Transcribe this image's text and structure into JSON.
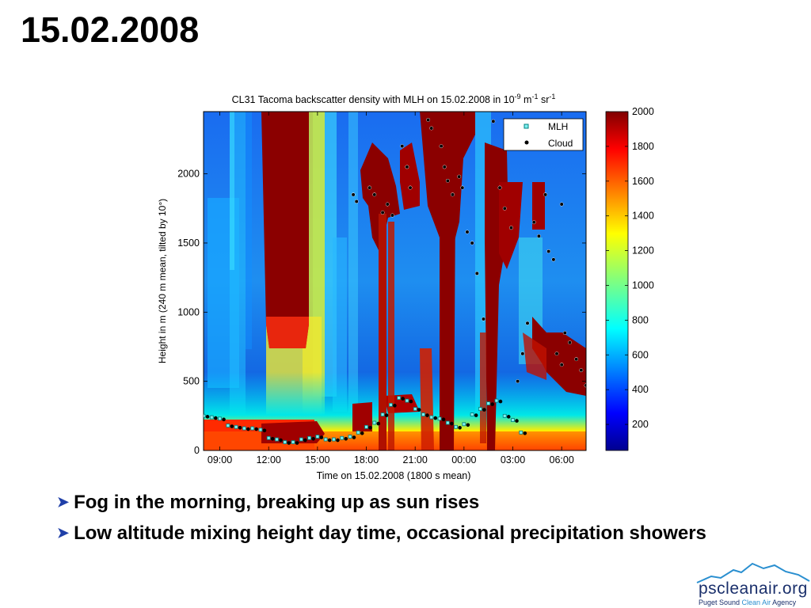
{
  "slide": {
    "title": "15.02.2008",
    "bullets": [
      "Fog in the morning, breaking up as sun rises",
      "Low altitude mixing height day time, occasional precipitation showers"
    ],
    "logo": {
      "name": "pscleanair.org",
      "tagline_part1": "Puget Sound ",
      "tagline_clean": "Clean Air",
      "tagline_part2": " Agency"
    }
  },
  "chart_data": {
    "type": "heatmap",
    "title": "CL31 Tacoma backscatter density with MLH on 15.02.2008 in 10^-9 m^-1 sr^-1",
    "title_parts": {
      "main": "CL31 Tacoma backscatter density with MLH on 15.02.2008 in 10",
      "exp1": "-9",
      "mid": " m",
      "exp2": "-1",
      "mid2": " sr",
      "exp3": "-1"
    },
    "xlabel": "Time on 15.02.2008 (1800 s mean)",
    "ylabel": "Height in m (240 m mean, tilted by 10°)",
    "x_ticks": [
      "09:00",
      "12:00",
      "15:00",
      "18:00",
      "21:00",
      "00:00",
      "03:00",
      "06:00"
    ],
    "x_tick_hours": [
      0,
      3,
      6,
      9,
      12,
      15,
      18,
      21
    ],
    "xlim_hours": [
      -1,
      22.5
    ],
    "y_ticks": [
      0,
      500,
      1000,
      1500,
      2000
    ],
    "ylim": [
      0,
      2450
    ],
    "colorbar": {
      "ticks": [
        200,
        400,
        600,
        800,
        1000,
        1200,
        1400,
        1600,
        1800,
        2000
      ],
      "range": [
        50,
        2000
      ],
      "colormap": "jet"
    },
    "legend": {
      "position": "top-right",
      "entries": [
        {
          "label": "MLH",
          "marker": "square",
          "color": "#00b0b0"
        },
        {
          "label": "Cloud",
          "marker": "dot",
          "color": "#000000"
        }
      ]
    },
    "series": [
      {
        "name": "MLH",
        "x_hours": [
          -1,
          -0.5,
          0,
          0.5,
          1,
          1.5,
          2,
          2.5,
          3,
          3.5,
          4,
          4.5,
          5,
          5.5,
          6,
          6.5,
          7,
          7.5,
          8,
          8.5,
          9,
          9.5,
          10,
          10.5,
          11,
          11.5,
          12,
          12.5,
          13,
          13.5,
          14,
          14.5,
          15,
          15.5,
          16,
          16.5,
          17,
          17.5,
          18,
          18.5
        ],
        "heights": [
          250,
          240,
          230,
          180,
          170,
          160,
          160,
          150,
          90,
          80,
          60,
          60,
          80,
          90,
          100,
          80,
          80,
          90,
          100,
          130,
          170,
          200,
          260,
          330,
          380,
          360,
          300,
          260,
          240,
          230,
          200,
          170,
          190,
          260,
          300,
          340,
          360,
          250,
          220,
          130
        ]
      }
    ],
    "cloud_points": [
      {
        "x": 8.2,
        "y": 1850
      },
      {
        "x": 8.4,
        "y": 1800
      },
      {
        "x": 9.2,
        "y": 1900
      },
      {
        "x": 9.5,
        "y": 1850
      },
      {
        "x": 10.0,
        "y": 1720
      },
      {
        "x": 10.3,
        "y": 1780
      },
      {
        "x": 10.6,
        "y": 1700
      },
      {
        "x": 11.2,
        "y": 2200
      },
      {
        "x": 11.5,
        "y": 2050
      },
      {
        "x": 11.7,
        "y": 1900
      },
      {
        "x": 12.8,
        "y": 2390
      },
      {
        "x": 13.0,
        "y": 2330
      },
      {
        "x": 13.6,
        "y": 2200
      },
      {
        "x": 13.8,
        "y": 2050
      },
      {
        "x": 14.0,
        "y": 1950
      },
      {
        "x": 14.3,
        "y": 1850
      },
      {
        "x": 14.7,
        "y": 1980
      },
      {
        "x": 14.9,
        "y": 1900
      },
      {
        "x": 15.2,
        "y": 1580
      },
      {
        "x": 15.5,
        "y": 1500
      },
      {
        "x": 15.8,
        "y": 1280
      },
      {
        "x": 16.2,
        "y": 950
      },
      {
        "x": 16.8,
        "y": 2380
      },
      {
        "x": 17.2,
        "y": 1900
      },
      {
        "x": 17.5,
        "y": 1750
      },
      {
        "x": 17.9,
        "y": 1610
      },
      {
        "x": 18.3,
        "y": 500
      },
      {
        "x": 18.6,
        "y": 700
      },
      {
        "x": 18.9,
        "y": 920
      },
      {
        "x": 19.3,
        "y": 1650
      },
      {
        "x": 19.6,
        "y": 1550
      },
      {
        "x": 20.0,
        "y": 1850
      },
      {
        "x": 20.2,
        "y": 1440
      },
      {
        "x": 20.5,
        "y": 1380
      },
      {
        "x": 21.0,
        "y": 1780
      },
      {
        "x": 21.2,
        "y": 850
      },
      {
        "x": 21.5,
        "y": 780
      },
      {
        "x": 21.9,
        "y": 660
      },
      {
        "x": 22.2,
        "y": 580
      },
      {
        "x": 22.5,
        "y": 470
      },
      {
        "x": 20.7,
        "y": 700
      },
      {
        "x": 21.0,
        "y": 620
      }
    ]
  }
}
